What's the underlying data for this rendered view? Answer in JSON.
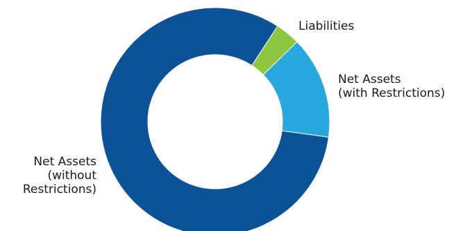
{
  "chart_data": {
    "type": "pie",
    "donut": true,
    "slices": [
      {
        "label": [
          "Liabilities"
        ],
        "value": 3.5,
        "color": "#8dc63f"
      },
      {
        "label": [
          "Net Assets",
          "(with Restrictions)"
        ],
        "value": 14.5,
        "color": "#29a8e0"
      },
      {
        "label": [
          "Net Assets",
          "(without",
          "Restrictions)"
        ],
        "value": 82.0,
        "color": "#0b5297"
      }
    ],
    "legend": "none"
  }
}
